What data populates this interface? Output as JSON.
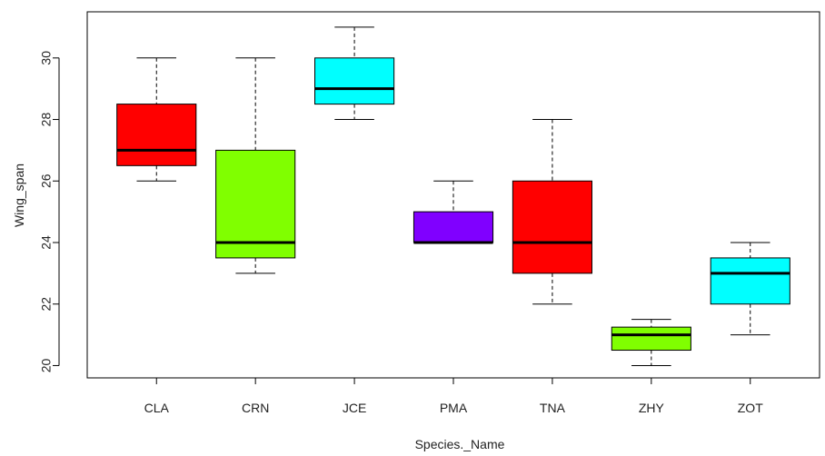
{
  "chart_data": {
    "type": "boxplot",
    "xlabel": "Species._Name",
    "ylabel": "Wing_span",
    "ylim": [
      19.6,
      31.5
    ],
    "yticks": [
      20,
      22,
      24,
      26,
      28,
      30
    ],
    "categories": [
      "CLA",
      "CRN",
      "JCE",
      "PMA",
      "TNA",
      "ZHY",
      "ZOT"
    ],
    "boxes": [
      {
        "name": "CLA",
        "min": 26,
        "q1": 26.5,
        "median": 27,
        "q3": 28.5,
        "max": 30,
        "color": "#ff0000"
      },
      {
        "name": "CRN",
        "min": 23,
        "q1": 23.5,
        "median": 24,
        "q3": 27,
        "max": 30,
        "color": "#80ff00"
      },
      {
        "name": "JCE",
        "min": 28,
        "q1": 28.5,
        "median": 29,
        "q3": 30,
        "max": 31,
        "color": "#00ffff"
      },
      {
        "name": "PMA",
        "min": 24,
        "q1": 24,
        "median": 24,
        "q3": 25,
        "max": 26,
        "color": "#8000ff"
      },
      {
        "name": "TNA",
        "min": 22,
        "q1": 23,
        "median": 24,
        "q3": 26,
        "max": 28,
        "color": "#ff0000"
      },
      {
        "name": "ZHY",
        "min": 20,
        "q1": 20.5,
        "median": 21,
        "q3": 21.25,
        "max": 21.5,
        "color": "#80ff00"
      },
      {
        "name": "ZOT",
        "min": 21,
        "q1": 22,
        "median": 23,
        "q3": 23.5,
        "max": 24,
        "color": "#00ffff"
      }
    ]
  }
}
